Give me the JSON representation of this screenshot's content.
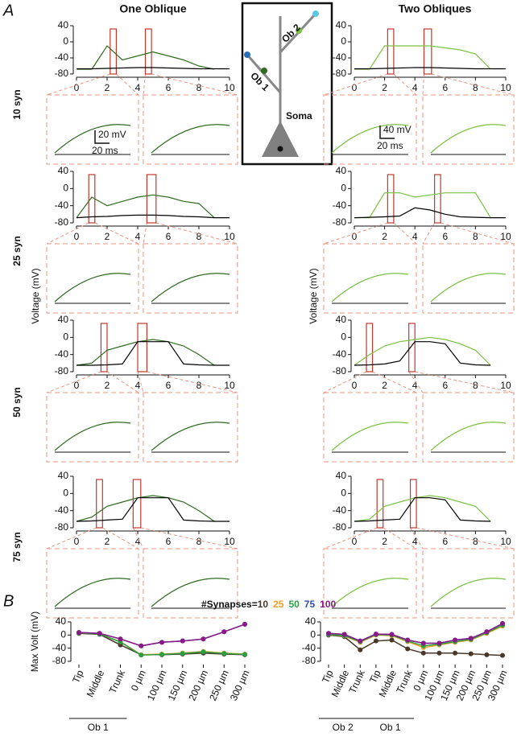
{
  "panel_labels": [
    "A",
    "B"
  ],
  "column_titles": [
    "One Oblique",
    "Two Obliques"
  ],
  "row_labels": [
    {
      "text": "10 syn",
      "color": "#5c4433"
    },
    {
      "text": "25 syn",
      "color": "#f39c1e"
    },
    {
      "text": "50 syn",
      "color": "#2aa043"
    },
    {
      "text": "75 syn",
      "color": "#2f4fa0"
    }
  ],
  "schematic": {
    "labels": [
      "Ob 2",
      "Ob 1",
      "Soma"
    ]
  },
  "scale_bars": {
    "left": [
      "20 mV",
      "20 ms"
    ],
    "right": [
      "40 mV",
      "20 ms"
    ]
  },
  "legend": {
    "title": "#Synapses="
  },
  "chart_data": [
    {
      "type": "line",
      "x": [
        0,
        1,
        2,
        3,
        4,
        5,
        6,
        7,
        8,
        9,
        10
      ],
      "xlim": [
        0,
        10
      ],
      "xticks": [
        0,
        2,
        4,
        6,
        8,
        10
      ],
      "ylim": [
        -80,
        40
      ],
      "yticks": [
        40,
        0,
        -40,
        -80
      ],
      "zoom_windows": [
        [
          2.2,
          2.6
        ],
        [
          4.5,
          4.9
        ]
      ],
      "series": [
        {
          "color": "#2e6b1f",
          "values": [
            -68,
            -68,
            -10,
            -45,
            -35,
            -25,
            -35,
            -45,
            -60,
            -68,
            null
          ]
        },
        {
          "color": "#000000",
          "values": [
            -67,
            -67,
            -66,
            -65,
            -64,
            -64,
            -65,
            -66,
            -67,
            -67,
            -67
          ]
        }
      ]
    },
    {
      "type": "line",
      "x": [
        0,
        1,
        2,
        3,
        4,
        5,
        6,
        7,
        8,
        9,
        10
      ],
      "xlim": [
        0,
        10
      ],
      "xticks": [
        0,
        2,
        4,
        6,
        8,
        10
      ],
      "ylim": [
        -80,
        40
      ],
      "yticks": [
        40,
        0,
        -40,
        -80
      ],
      "zoom_windows": [
        [
          2.2,
          2.6
        ],
        [
          4.6,
          5.1
        ]
      ],
      "series": [
        {
          "color": "#7ac143",
          "values": [
            -68,
            -68,
            -10,
            -10,
            -10,
            -10,
            -15,
            -20,
            -30,
            -68,
            null
          ]
        },
        {
          "color": "#000000",
          "values": [
            -67,
            -67,
            -66,
            -65,
            -64,
            -64,
            -65,
            -66,
            -67,
            -67,
            -67
          ]
        }
      ]
    },
    {
      "type": "line",
      "x": [
        0,
        1,
        2,
        3,
        4,
        5,
        6,
        7,
        8,
        9,
        10
      ],
      "xlim": [
        0,
        10
      ],
      "xticks": [
        0,
        2,
        4,
        6,
        8,
        10
      ],
      "ylim": [
        -80,
        40
      ],
      "yticks": [
        40,
        0,
        -40,
        -80
      ],
      "zoom_windows": [
        [
          0.8,
          1.2
        ],
        [
          4.6,
          5.2
        ]
      ],
      "series": [
        {
          "color": "#2e6b1f",
          "values": [
            -68,
            -20,
            -40,
            -30,
            -20,
            -15,
            -20,
            -30,
            -35,
            -68,
            null
          ]
        },
        {
          "color": "#000000",
          "values": [
            -68,
            -66,
            -65,
            -63,
            -62,
            -62,
            -63,
            -65,
            -66,
            -68,
            -68
          ]
        }
      ]
    },
    {
      "type": "line",
      "x": [
        0,
        1,
        2,
        3,
        4,
        5,
        6,
        7,
        8,
        9,
        10
      ],
      "xlim": [
        0,
        10
      ],
      "xticks": [
        0,
        2,
        4,
        6,
        8,
        10
      ],
      "ylim": [
        -80,
        40
      ],
      "yticks": [
        40,
        0,
        -40,
        -80
      ],
      "zoom_windows": [
        [
          2.2,
          2.6
        ],
        [
          5.3,
          5.7
        ]
      ],
      "series": [
        {
          "color": "#7ac143",
          "values": [
            -68,
            -68,
            -10,
            -10,
            -20,
            -15,
            -10,
            -10,
            -10,
            -68,
            null
          ]
        },
        {
          "color": "#000000",
          "values": [
            -68,
            -67,
            -66,
            -64,
            -45,
            -50,
            -60,
            -66,
            -67,
            -68,
            -68
          ]
        }
      ]
    },
    {
      "type": "line",
      "ylabel": "Voltage (mV)",
      "x": [
        0,
        1,
        2,
        3,
        4,
        5,
        6,
        7,
        8,
        9,
        10
      ],
      "xlim": [
        0,
        10
      ],
      "xticks": [
        0,
        2,
        4,
        6,
        8,
        10
      ],
      "ylim": [
        -80,
        40
      ],
      "yticks": [
        40,
        0,
        -40,
        -80
      ],
      "zoom_windows": [
        [
          1.6,
          2.0
        ],
        [
          4.0,
          4.6
        ]
      ],
      "series": [
        {
          "color": "#2e6b1f",
          "values": [
            -65,
            -60,
            -30,
            -20,
            -10,
            -5,
            -10,
            -20,
            -40,
            -65,
            null
          ]
        },
        {
          "color": "#000000",
          "values": [
            -65,
            -65,
            -64,
            -62,
            -10,
            -10,
            -10,
            -62,
            -64,
            -65,
            -65
          ]
        }
      ]
    },
    {
      "type": "line",
      "ylabel": "Voltage (mV)",
      "x": [
        0,
        1,
        2,
        3,
        4,
        5,
        6,
        7,
        8,
        9,
        10
      ],
      "xlim": [
        0,
        10
      ],
      "xticks": [
        0,
        2,
        4,
        6,
        8,
        10
      ],
      "ylim": [
        -80,
        40
      ],
      "yticks": [
        40,
        0,
        -40,
        -80
      ],
      "zoom_windows": [
        [
          0.8,
          1.2
        ],
        [
          3.6,
          4.0
        ]
      ],
      "series": [
        {
          "color": "#7ac143",
          "values": [
            -65,
            -40,
            -20,
            -10,
            -5,
            0,
            -5,
            -15,
            -30,
            -65,
            null
          ]
        },
        {
          "color": "#000000",
          "values": [
            -65,
            -64,
            -62,
            -55,
            -10,
            -10,
            -15,
            -60,
            -64,
            -65,
            null
          ]
        }
      ]
    },
    {
      "type": "line",
      "x": [
        0,
        1,
        2,
        3,
        4,
        5,
        6,
        7,
        8,
        9,
        10
      ],
      "xlim": [
        0,
        10
      ],
      "xticks": [
        0,
        2,
        4,
        6,
        8,
        10
      ],
      "ylim": [
        -80,
        40
      ],
      "yticks": [
        40,
        0,
        -40,
        -80
      ],
      "zoom_windows": [
        [
          1.3,
          1.7
        ],
        [
          3.7,
          4.2
        ]
      ],
      "series": [
        {
          "color": "#2e6b1f",
          "values": [
            -65,
            -55,
            -30,
            -20,
            -10,
            -5,
            -10,
            -20,
            -40,
            -65,
            null
          ]
        },
        {
          "color": "#000000",
          "values": [
            -65,
            -64,
            -62,
            -60,
            -10,
            -10,
            -10,
            -62,
            -64,
            -65,
            -65
          ]
        }
      ]
    },
    {
      "type": "line",
      "x": [
        0,
        1,
        2,
        3,
        4,
        5,
        6,
        7,
        8,
        9,
        10
      ],
      "xlim": [
        0,
        10
      ],
      "xticks": [
        0,
        2,
        4,
        6,
        8,
        10
      ],
      "ylim": [
        -80,
        40
      ],
      "yticks": [
        40,
        0,
        -40,
        -80
      ],
      "zoom_windows": [
        [
          1.5,
          1.9
        ],
        [
          3.7,
          4.1
        ]
      ],
      "series": [
        {
          "color": "#7ac143",
          "values": [
            -65,
            -60,
            -30,
            -20,
            -10,
            -5,
            -10,
            -20,
            -30,
            -65,
            null
          ]
        },
        {
          "color": "#000000",
          "values": [
            -65,
            -64,
            -62,
            -60,
            -10,
            -10,
            -15,
            -62,
            -64,
            -65,
            null
          ]
        }
      ]
    },
    {
      "type": "line",
      "ylabel": "Max Volt (mV)",
      "categories": [
        "Tip",
        "Middle",
        "Trunk",
        "0 µm",
        "100 µm",
        "150 µm",
        "200 µm",
        "250 µm",
        "300 µm"
      ],
      "category_groups": [
        "Ob 1",
        "Ob 1",
        "Ob 1",
        null,
        null,
        null,
        null,
        null,
        null
      ],
      "ylim": [
        -80,
        40
      ],
      "yticks": [
        40,
        0,
        -40,
        -80
      ],
      "series": [
        {
          "name": "10",
          "color": "#4a3728",
          "values": [
            5,
            2,
            -30,
            -60,
            -60,
            -58,
            -55,
            -58,
            -60
          ]
        },
        {
          "name": "25",
          "color": "#f39c1e",
          "values": [
            7,
            3,
            -20,
            -60,
            -58,
            -55,
            -50,
            -55,
            -58
          ]
        },
        {
          "name": "50",
          "color": "#2aa043",
          "values": [
            7,
            3,
            -21,
            -61,
            -59,
            -56,
            -51,
            -56,
            -59
          ]
        },
        {
          "name": "75",
          "color": "#2f4fa0",
          "values": [
            8,
            5,
            -12,
            -33,
            -22,
            -18,
            -12,
            10,
            33
          ]
        },
        {
          "name": "100",
          "color": "#8b1a89",
          "values": [
            8,
            5,
            -12,
            -33,
            -22,
            -18,
            -12,
            10,
            33
          ]
        }
      ]
    },
    {
      "type": "line",
      "categories": [
        "Tip",
        "Middle",
        "Trunk",
        "Tip",
        "Middle",
        "Trunk",
        "0 µm",
        "100 µm",
        "150 µm",
        "200 µm",
        "250 µm",
        "300 µm"
      ],
      "category_groups": [
        "Ob 2",
        "Ob 2",
        "Ob 2",
        "Ob 1",
        "Ob 1",
        "Ob 1",
        null,
        null,
        null,
        null,
        null,
        null
      ],
      "ylim": [
        -80,
        40
      ],
      "yticks": [
        40,
        0,
        -40,
        -80
      ],
      "series": [
        {
          "name": "10",
          "color": "#4a3728",
          "values": [
            0,
            -5,
            -45,
            -18,
            -15,
            -42,
            -55,
            -55,
            -55,
            -57,
            -60,
            -62
          ]
        },
        {
          "name": "25",
          "color": "#f39c1e",
          "values": [
            2,
            -3,
            -22,
            0,
            -2,
            -20,
            -38,
            -30,
            -22,
            -15,
            5,
            27
          ]
        },
        {
          "name": "50",
          "color": "#2aa043",
          "values": [
            2,
            -2,
            -20,
            1,
            0,
            -18,
            -33,
            -28,
            -20,
            -13,
            7,
            30
          ]
        },
        {
          "name": "75",
          "color": "#2f4fa0",
          "values": [
            5,
            2,
            -18,
            3,
            2,
            -15,
            -25,
            -25,
            -15,
            -10,
            10,
            35
          ]
        },
        {
          "name": "100",
          "color": "#8b1a89",
          "values": [
            5,
            2,
            -18,
            3,
            2,
            -15,
            -25,
            -25,
            -15,
            -10,
            10,
            35
          ]
        }
      ]
    }
  ]
}
